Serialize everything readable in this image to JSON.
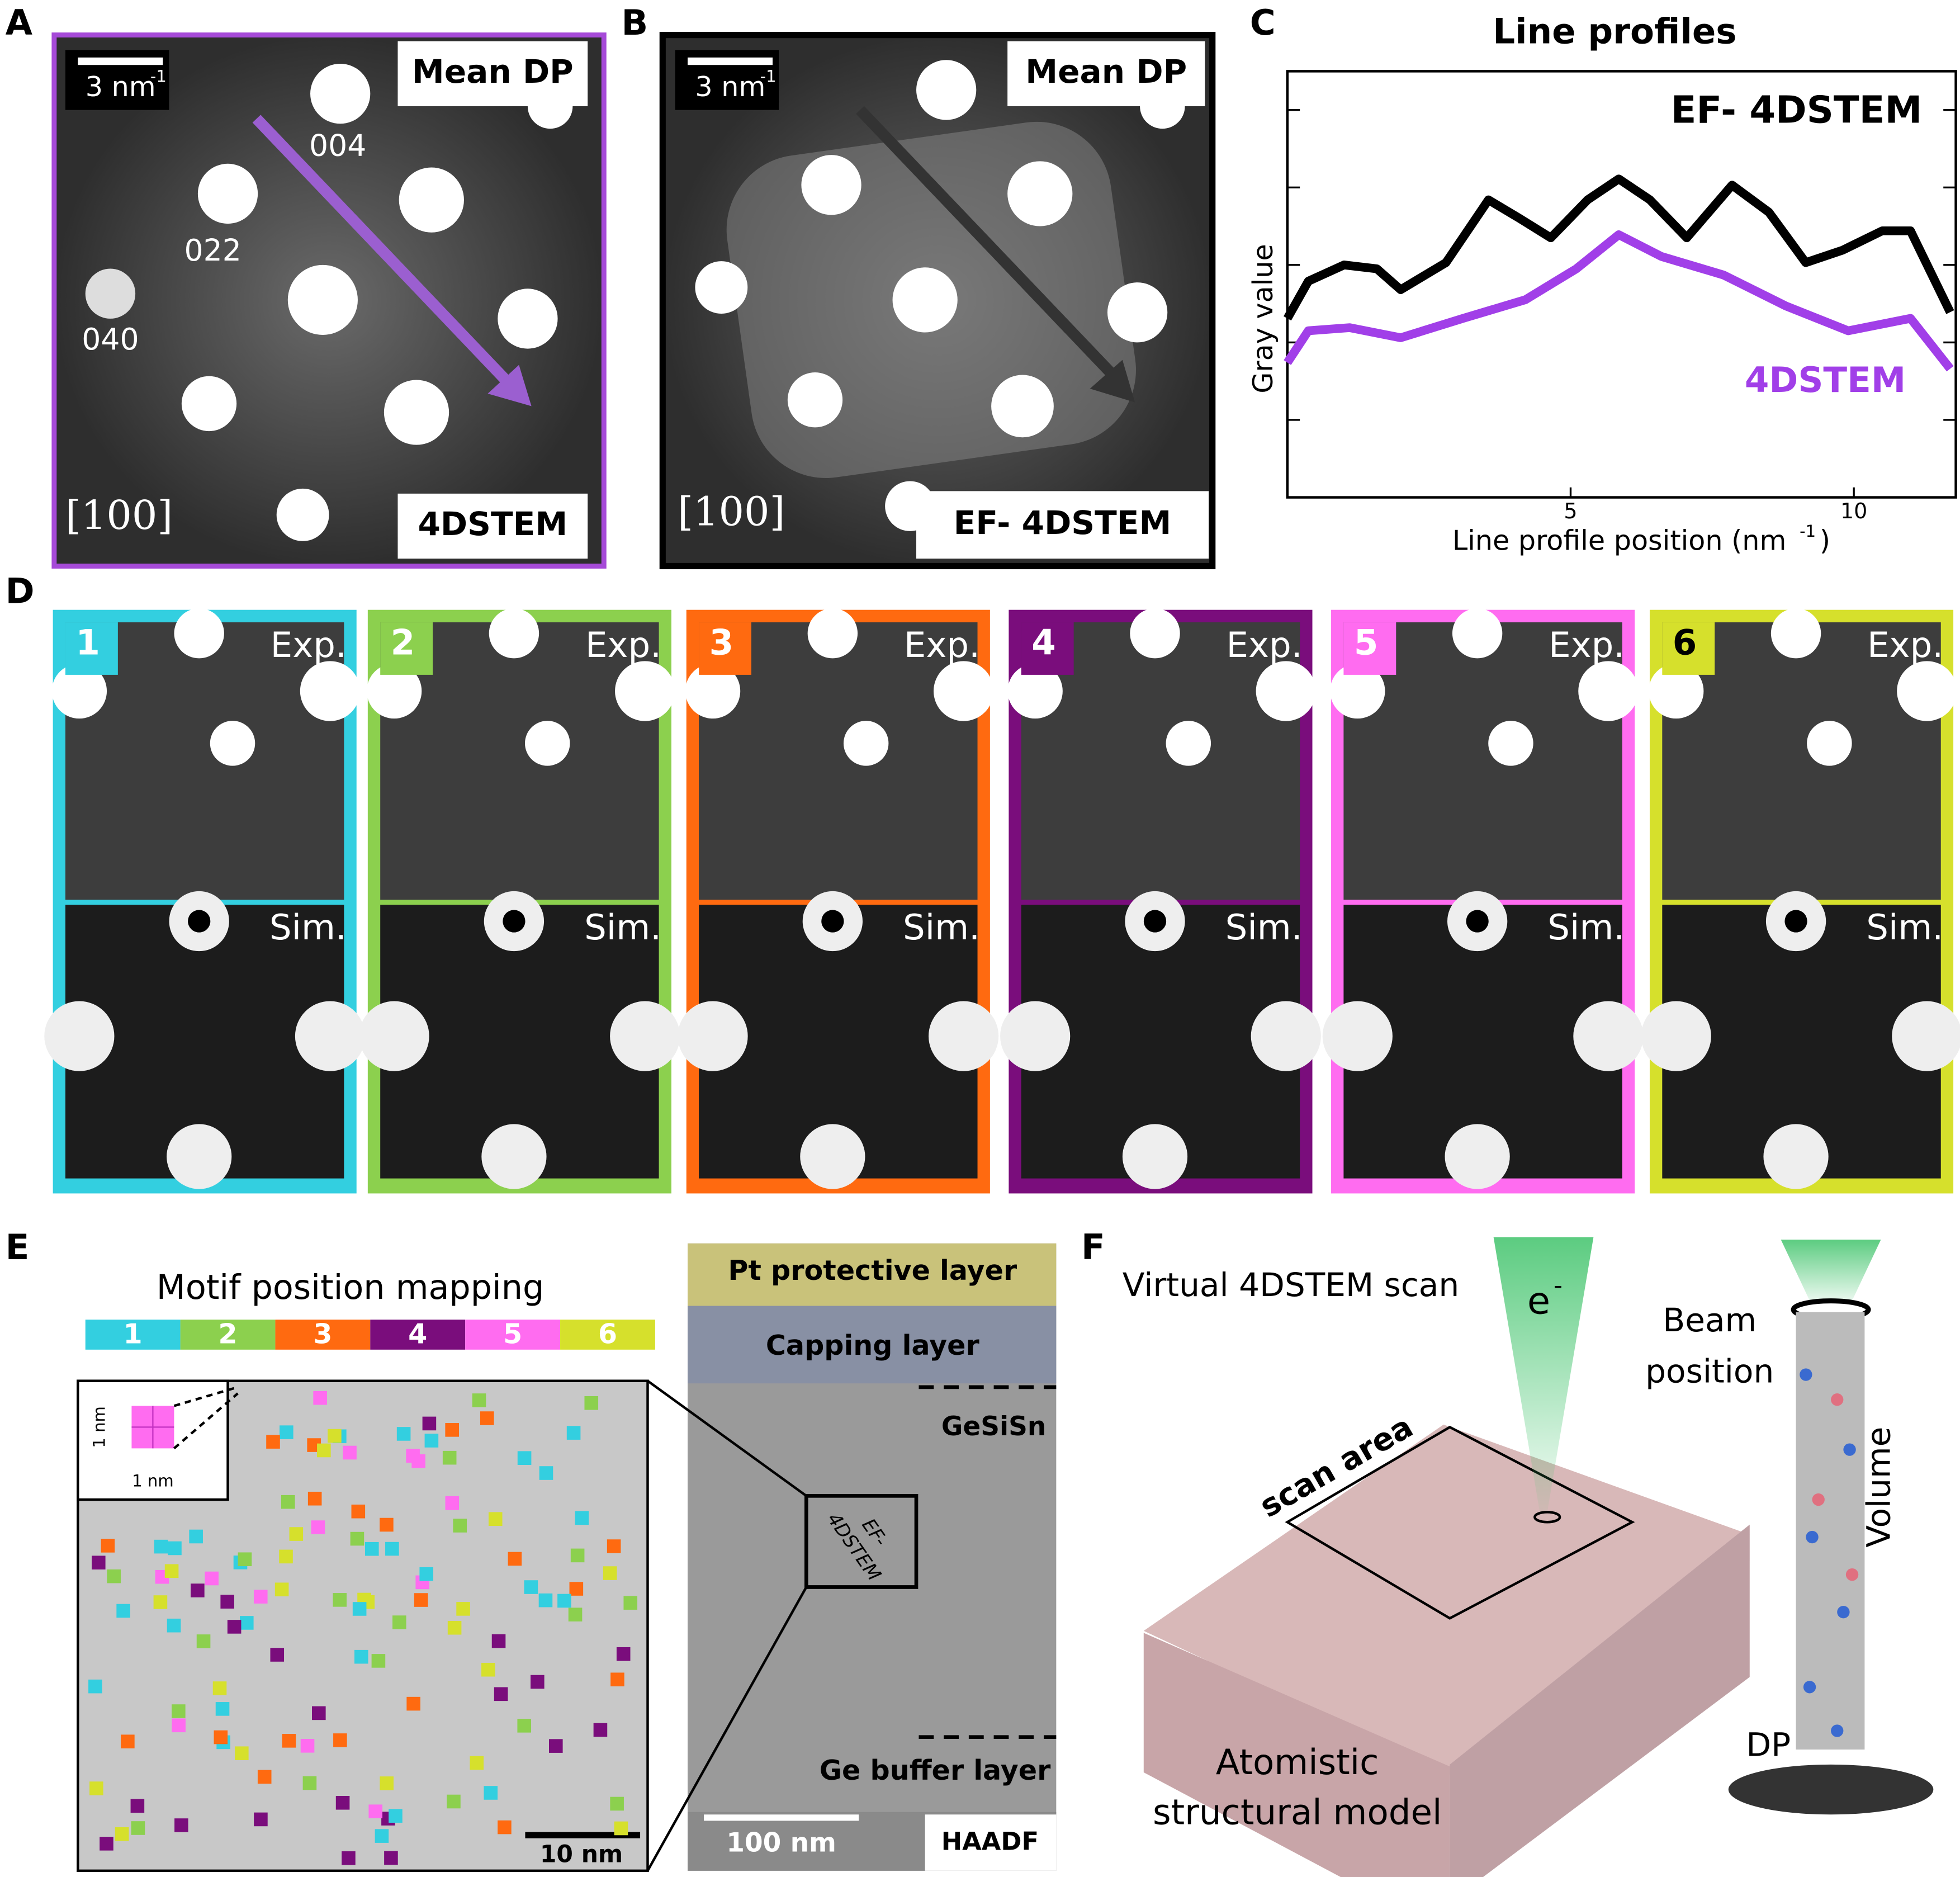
{
  "panel_a": {
    "letter": "A",
    "label": "Mean DP",
    "scale": "3 nm",
    "scale_exp": "-1",
    "indices": [
      "004",
      "022",
      "040"
    ],
    "zone": "[100]",
    "mode": "4DSTEM"
  },
  "panel_b": {
    "letter": "B",
    "label": "Mean DP",
    "scale": "3 nm",
    "scale_exp": "-1",
    "zone": "[100]",
    "mode": "EF- 4DSTEM"
  },
  "panel_c": {
    "letter": "C"
  },
  "chart_data": {
    "type": "line",
    "title": "Line profiles",
    "y_label": "Gray value",
    "x_label": "Line profile position (nm",
    "x_label_exp": "-1",
    "x_label_end": ")",
    "xlim": [
      0,
      11.8
    ],
    "xticks": [
      5,
      10
    ],
    "ylim": [
      0,
      5.5
    ],
    "yticks": [
      1,
      2,
      3,
      4,
      5
    ],
    "series": [
      {
        "name": "EF- 4DSTEM",
        "color": "#000000",
        "x": [
          0,
          0.37,
          1.0,
          1.58,
          2.0,
          2.8,
          3.55,
          4.1,
          4.65,
          5.3,
          5.85,
          6.4,
          7.05,
          7.85,
          8.5,
          9.15,
          9.8,
          10.5,
          11.0,
          11.7
        ],
        "values": [
          2.31,
          2.79,
          3.0,
          2.95,
          2.68,
          3.03,
          3.84,
          3.6,
          3.35,
          3.84,
          4.11,
          3.84,
          3.35,
          4.03,
          3.68,
          3.03,
          3.19,
          3.44,
          3.44,
          2.39
        ]
      },
      {
        "name": "4DSTEM",
        "color": "#a13fe8",
        "x": [
          0,
          0.37,
          1.1,
          2.0,
          3.1,
          4.2,
          5.1,
          5.85,
          6.6,
          7.7,
          8.8,
          9.9,
          11.0,
          11.7
        ],
        "values": [
          1.74,
          2.15,
          2.19,
          2.06,
          2.31,
          2.55,
          2.95,
          3.39,
          3.11,
          2.87,
          2.47,
          2.15,
          2.31,
          1.66
        ]
      }
    ]
  },
  "panel_d": {
    "letter": "D",
    "tiles": [
      {
        "number": "1",
        "exp": "Exp.",
        "sim": "Sim.",
        "color": "#33cfe0"
      },
      {
        "number": "2",
        "exp": "Exp.",
        "sim": "Sim.",
        "color": "#8cd04e"
      },
      {
        "number": "3",
        "exp": "Exp.",
        "sim": "Sim.",
        "color": "#ff6a10"
      },
      {
        "number": "4",
        "exp": "Exp.",
        "sim": "Sim.",
        "color": "#7a0d7c"
      },
      {
        "number": "5",
        "exp": "Exp.",
        "sim": "Sim.",
        "color": "#ff6cf0"
      },
      {
        "number": "6",
        "exp": "Exp.",
        "sim": "Sim.",
        "color": "#d6e02c"
      }
    ]
  },
  "panel_e": {
    "letter": "E",
    "title": "Motif position mapping",
    "legend": [
      "1",
      "2",
      "3",
      "4",
      "5",
      "6"
    ],
    "inset_h": "1 nm",
    "inset_w": "1 nm",
    "scale": "10 nm",
    "layers": [
      "Pt protective layer",
      "Capping layer",
      "GeSiSn",
      "Ge buffer layer"
    ],
    "box_label": [
      "EF-",
      "4DSTEM"
    ],
    "haadf_scale": "100 nm",
    "haadf": "HAADF"
  },
  "panel_f": {
    "letter": "F",
    "title": "Virtual 4DSTEM scan",
    "beam": "e",
    "beam_exp": "-",
    "beam_pos": [
      "Beam",
      "position"
    ],
    "volume": "Volume",
    "scan_area": "scan area",
    "model": [
      "Atomistic",
      "structural model"
    ],
    "dp": "DP"
  }
}
